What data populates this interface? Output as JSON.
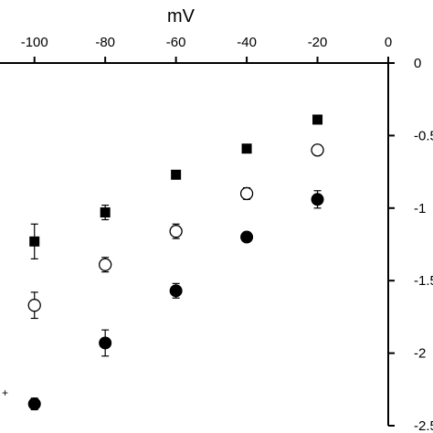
{
  "chart_data": {
    "type": "scatter",
    "title": "",
    "xlabel": "mV",
    "ylabel": "",
    "xlim": [
      -110,
      0
    ],
    "ylim": [
      -2.5,
      0
    ],
    "x_ticks": [
      -100,
      -80,
      -60,
      -40,
      -20,
      0
    ],
    "x_tick_labels": [
      "-100",
      "-80",
      "-60",
      "-40",
      "-20",
      "0"
    ],
    "y_ticks": [
      0,
      -0.5,
      -1,
      -1.5,
      -2,
      -2.5
    ],
    "y_tick_labels": [
      "0",
      "-0.5",
      "-1",
      "-1.5",
      "-2",
      "-2.5"
    ],
    "legend_fragment": "+",
    "x_axis_position": "top",
    "y_axis_position": "right",
    "grid": false,
    "series": [
      {
        "marker": "filled-square",
        "points": [
          {
            "x": -100,
            "y": -1.23,
            "err": 0.12
          },
          {
            "x": -80,
            "y": -1.03,
            "err": 0.05
          },
          {
            "x": -60,
            "y": -0.77,
            "err": 0.0
          },
          {
            "x": -40,
            "y": -0.59,
            "err": 0.0
          },
          {
            "x": -20,
            "y": -0.39,
            "err": 0.0
          }
        ]
      },
      {
        "marker": "open-circle",
        "points": [
          {
            "x": -100,
            "y": -1.67,
            "err": 0.09
          },
          {
            "x": -80,
            "y": -1.39,
            "err": 0.05
          },
          {
            "x": -60,
            "y": -1.16,
            "err": 0.05
          },
          {
            "x": -40,
            "y": -0.9,
            "err": 0.04
          },
          {
            "x": -20,
            "y": -0.6,
            "err": 0.03
          }
        ]
      },
      {
        "marker": "filled-circle",
        "points": [
          {
            "x": -100,
            "y": -2.35,
            "err": 0.04
          },
          {
            "x": -80,
            "y": -1.93,
            "err": 0.09
          },
          {
            "x": -60,
            "y": -1.57,
            "err": 0.05
          },
          {
            "x": -40,
            "y": -1.2,
            "err": 0.0
          },
          {
            "x": -20,
            "y": -0.94,
            "err": 0.06
          }
        ]
      }
    ]
  }
}
